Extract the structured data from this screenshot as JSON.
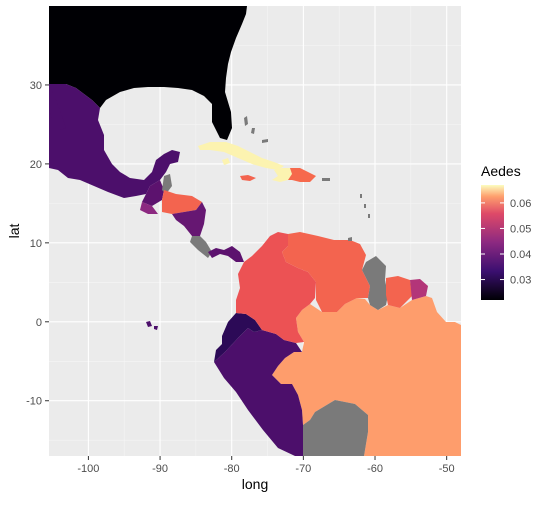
{
  "chart_data": {
    "type": "map",
    "xlabel": "long",
    "ylabel": "lat",
    "xticks": [
      "-100",
      "-90",
      "-80",
      "-70",
      "-60",
      "-50"
    ],
    "yticks": [
      "30",
      "20",
      "10",
      "0",
      "-10"
    ],
    "xlim": [
      -105.5,
      -48
    ],
    "ylim": [
      -17,
      40
    ],
    "grid": true,
    "legend": {
      "title": "Aedes",
      "position": "right",
      "ticks": [
        "0.06",
        "0.05",
        "0.04",
        "0.03"
      ],
      "range": [
        0.022,
        0.067
      ]
    },
    "colors": {
      "panel": "#ebebeb",
      "grid_major": "#ffffff",
      "usa": "#000004",
      "no_data": "#7a7a7a"
    },
    "regions": [
      {
        "name": "Mexico",
        "value": 0.038
      },
      {
        "name": "Guatemala",
        "value": 0.036
      },
      {
        "name": "Belize",
        "value": null
      },
      {
        "name": "Honduras",
        "value": 0.055
      },
      {
        "name": "El Salvador",
        "value": 0.044
      },
      {
        "name": "Nicaragua",
        "value": 0.04
      },
      {
        "name": "Costa Rica",
        "value": null
      },
      {
        "name": "Panama",
        "value": 0.036
      },
      {
        "name": "Cuba",
        "value": 0.066
      },
      {
        "name": "Jamaica",
        "value": 0.055
      },
      {
        "name": "Haiti",
        "value": 0.066
      },
      {
        "name": "Dominican Republic",
        "value": 0.054
      },
      {
        "name": "Colombia",
        "value": 0.052
      },
      {
        "name": "Venezuela",
        "value": 0.055
      },
      {
        "name": "Guyana",
        "value": null
      },
      {
        "name": "Suriname",
        "value": 0.055
      },
      {
        "name": "French Guiana",
        "value": 0.047
      },
      {
        "name": "Ecuador",
        "value": 0.03
      },
      {
        "name": "Peru",
        "value": 0.038
      },
      {
        "name": "Brazil",
        "value": 0.06
      },
      {
        "name": "Bolivia",
        "value": null
      }
    ]
  }
}
